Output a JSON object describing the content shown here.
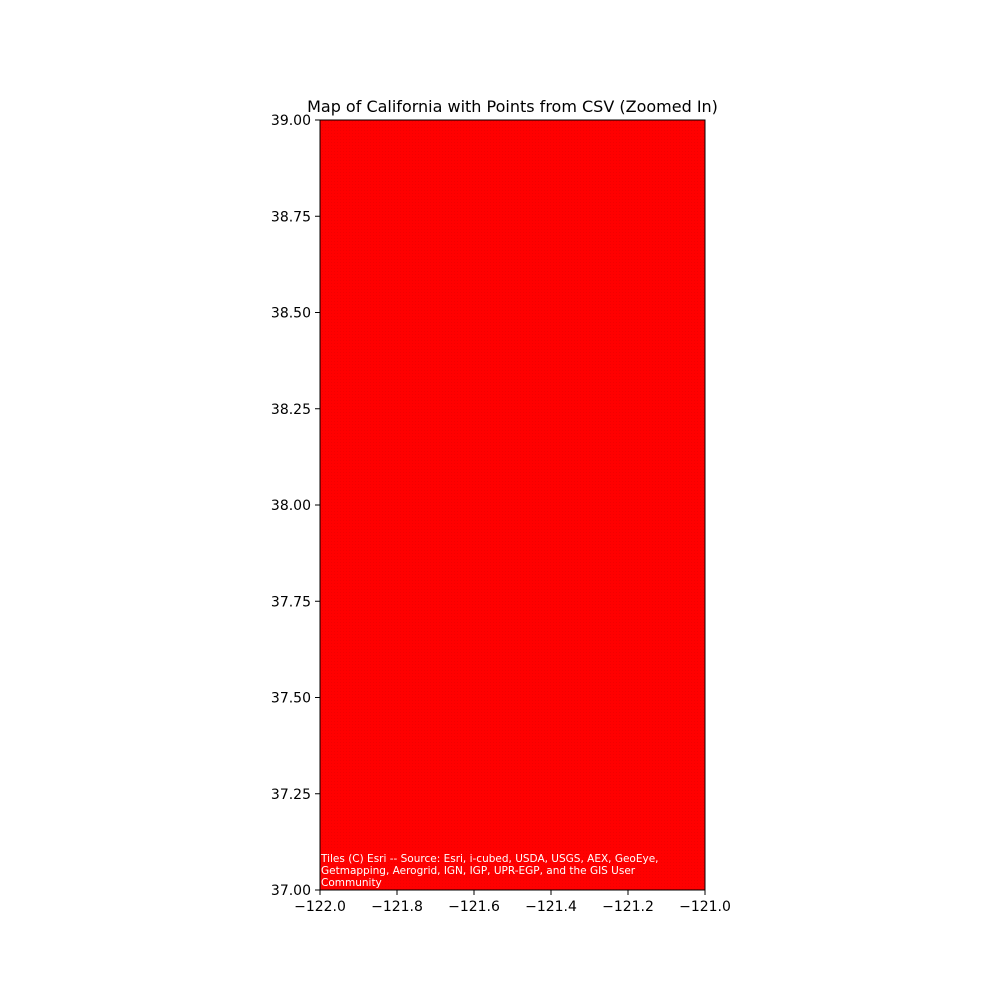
{
  "title": "Map of California with Points from CSV (Zoomed In)",
  "attribution": [
    "Tiles (C) Esri -- Source: Esri, i-cubed, USDA, USGS, AEX, GeoEye,",
    "Getmapping, Aerogrid, IGN, IGP, UPR-EGP, and the GIS User",
    "Community"
  ],
  "colors": {
    "points": "#ff0000",
    "attribution_text": "#ffffff",
    "axes": "#000000"
  },
  "chart_data": {
    "type": "scatter",
    "xlim": [
      -122.0,
      -121.0
    ],
    "ylim": [
      37.0,
      39.0
    ],
    "x_ticks": [
      -122.0,
      -121.8,
      -121.6,
      -121.4,
      -121.2,
      -121.0
    ],
    "x_tick_labels": [
      "−122.0",
      "−121.8",
      "−121.6",
      "−121.4",
      "−121.2",
      "−121.0"
    ],
    "y_ticks": [
      37.0,
      37.25,
      37.5,
      37.75,
      38.0,
      38.25,
      38.5,
      38.75,
      39.0
    ],
    "y_tick_labels": [
      "37.00",
      "37.25",
      "37.50",
      "37.75",
      "38.00",
      "38.25",
      "38.50",
      "38.75",
      "39.00"
    ],
    "grid": false,
    "point_color": "#ff0000",
    "points_cover_extent": true
  }
}
